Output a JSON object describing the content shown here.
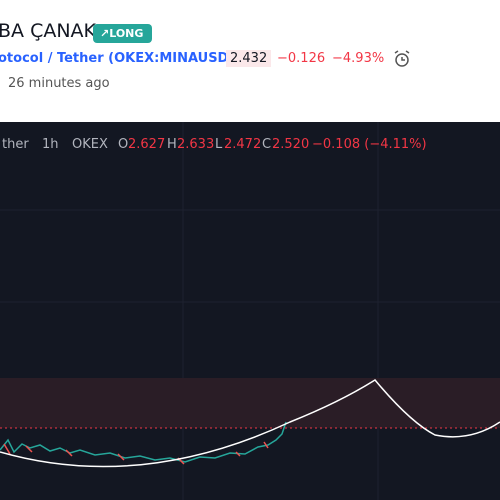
{
  "header": {
    "title": "BA ÇANAK",
    "badge": "LONG",
    "symbol": "otocol / Tether",
    "ticker": "(OKEX:MINAUSDT)",
    "price": "2.432",
    "change": "−0.126",
    "change_percent": "−4.93%",
    "time": "26 minutes ago"
  },
  "chart": {
    "symbol": "ther",
    "interval": "1h",
    "exchange": "OKEX",
    "open_label": "O",
    "open": "2.627",
    "high_label": "H",
    "high": "2.633",
    "low_label": "L",
    "low": "2.472",
    "close_label": "C",
    "close": "2.520",
    "change": "−0.108 (−4.11%)"
  }
}
